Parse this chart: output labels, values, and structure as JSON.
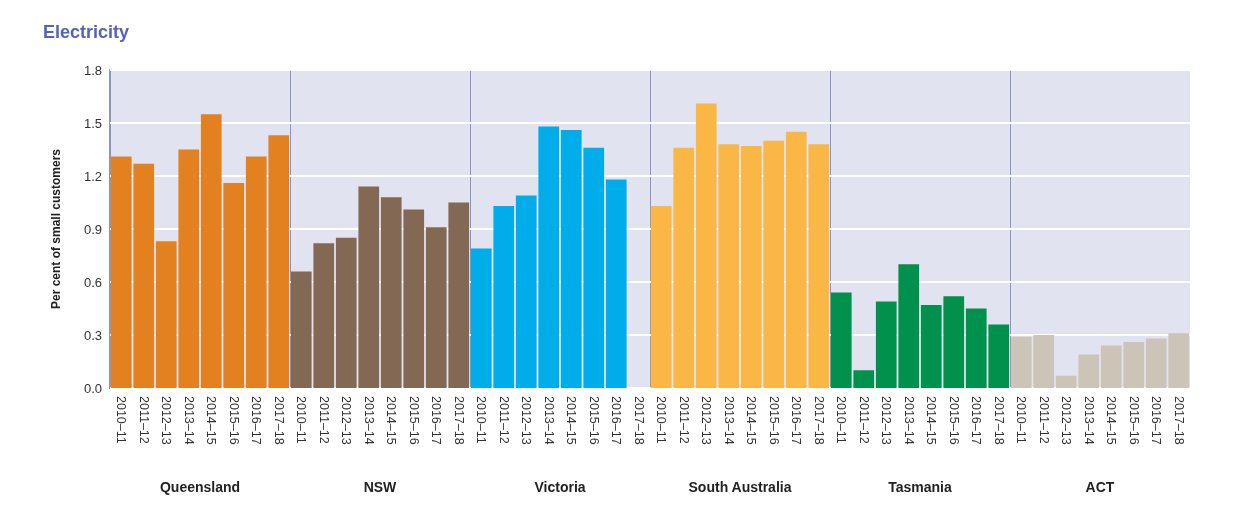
{
  "chart_data": [
    {
      "type": "bar",
      "title": "Electricity",
      "ylabel": "Per cent of small customers",
      "xlabel": "Queensland",
      "categories": [
        "2010–11",
        "2011–12",
        "2012–13",
        "2013–14",
        "2014–15",
        "2015–16",
        "2016–17",
        "2017–18"
      ],
      "values": [
        1.31,
        1.27,
        0.83,
        1.35,
        1.55,
        1.16,
        1.31,
        1.43
      ],
      "color": "#e38020",
      "ylim": [
        0,
        1.8
      ],
      "yticks": [
        {
          "value": 0,
          "label": "0.0"
        },
        0.3,
        0.6,
        0.9,
        1.2,
        1.5,
        1.8
      ],
      "grid": "y"
    },
    {
      "type": "bar",
      "xlabel": "NSW",
      "categories": [
        "2010–11",
        "2011–12",
        "2012–13",
        "2013–14",
        "2014–15",
        "2015–16",
        "2016–17",
        "2017–18"
      ],
      "values": [
        0.66,
        0.82,
        0.85,
        1.14,
        1.08,
        1.01,
        0.91,
        1.05
      ],
      "color": "#836953",
      "ylim": [
        0,
        1.8
      ],
      "yticks": [
        0,
        0.3,
        0.6,
        0.9,
        1.2,
        1.5,
        1.8
      ],
      "grid": "y",
      "tick_labels": "x"
    },
    {
      "type": "bar",
      "xlabel": "Victoria",
      "categories": [
        "2010–11",
        "2011–12",
        "2012–13",
        "2013–14",
        "2014–15",
        "2015–16",
        "2016–17",
        "2017–18"
      ],
      "values": [
        0.79,
        1.03,
        1.09,
        1.48,
        1.46,
        1.36,
        1.18,
        null
      ],
      "color": "#00adeb",
      "ylim": [
        0,
        1.8
      ],
      "yticks": [
        0,
        0.3,
        0.6,
        0.9,
        1.2,
        1.5,
        1.8
      ],
      "grid": "y",
      "tick_labels": "x"
    },
    {
      "type": "bar",
      "xlabel": "South Australia",
      "categories": [
        "2010–11",
        "2011–12",
        "2012–13",
        "2013–14",
        "2014–15",
        "2015–16",
        "2016–17",
        "2017–18"
      ],
      "values": [
        1.03,
        1.36,
        1.61,
        1.38,
        1.37,
        1.4,
        1.45,
        1.38
      ],
      "color": "#fbb745",
      "ylim": [
        0,
        1.8
      ],
      "yticks": [
        0,
        0.3,
        0.6,
        0.9,
        1.2,
        1.5,
        1.8
      ],
      "grid": "y",
      "tick_labels": "x"
    },
    {
      "type": "bar",
      "xlabel": "Tasmania",
      "categories": [
        "2010–11",
        "2011–12",
        "2012–13",
        "2013–14",
        "2014–15",
        "2015–16",
        "2016–17",
        "2017–18"
      ],
      "values": [
        0.54,
        0.1,
        0.49,
        0.7,
        0.47,
        0.52,
        0.45,
        0.36
      ],
      "color": "#00914c",
      "ylim": [
        0,
        1.8
      ],
      "yticks": [
        0,
        0.3,
        0.6,
        0.9,
        1.2,
        1.5,
        1.8
      ],
      "grid": "y",
      "tick_labels": "x"
    },
    {
      "type": "bar",
      "xlabel": "ACT",
      "categories": [
        "2010–11",
        "2011–12",
        "2012–13",
        "2013–14",
        "2014–15",
        "2015–16",
        "2016–17",
        "2017–18"
      ],
      "values": [
        0.29,
        0.3,
        0.07,
        0.19,
        0.24,
        0.26,
        0.28,
        0.31
      ],
      "color": "#cdc4b8",
      "ylim": [
        0,
        1.8
      ],
      "yticks": [
        0,
        0.3,
        0.6,
        0.9,
        1.2,
        1.5,
        1.8
      ],
      "grid": "y",
      "tick_labels": "x"
    }
  ]
}
